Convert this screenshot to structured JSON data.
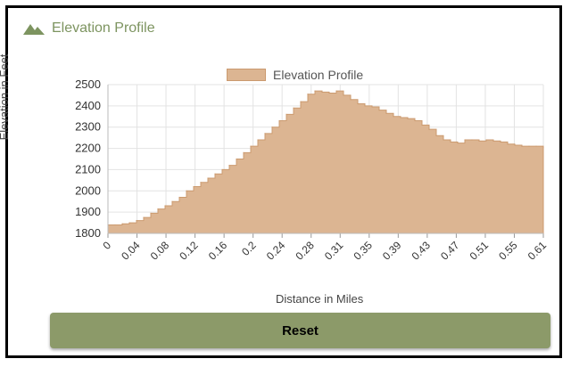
{
  "header": {
    "title": "Elevation Profile",
    "icon": "mountain-icon"
  },
  "chart_data": {
    "type": "area",
    "legend": [
      "Elevation Profile"
    ],
    "legend_placement": "top-center",
    "xlabel": "Distance in Miles",
    "ylabel": "Elevation in Feet",
    "ylim": [
      1800,
      2500
    ],
    "xlim": [
      0,
      0.61
    ],
    "y_ticks": [
      1800,
      1900,
      2000,
      2100,
      2200,
      2300,
      2400,
      2500
    ],
    "x_ticks": [
      "0",
      "0.04",
      "0.08",
      "0.12",
      "0.16",
      "0.2",
      "0.24",
      "0.28",
      "0.31",
      "0.35",
      "0.39",
      "0.43",
      "0.47",
      "0.51",
      "0.55",
      "0.61"
    ],
    "grid": true,
    "fill_color": "#dcb592",
    "line_color": "#cb9a6f",
    "series": [
      {
        "name": "Elevation Profile",
        "x": [
          0,
          0.01,
          0.02,
          0.03,
          0.04,
          0.05,
          0.06,
          0.07,
          0.08,
          0.09,
          0.1,
          0.11,
          0.12,
          0.13,
          0.14,
          0.15,
          0.16,
          0.17,
          0.18,
          0.19,
          0.2,
          0.21,
          0.22,
          0.23,
          0.24,
          0.25,
          0.26,
          0.27,
          0.28,
          0.29,
          0.3,
          0.31,
          0.32,
          0.33,
          0.34,
          0.35,
          0.36,
          0.37,
          0.38,
          0.39,
          0.4,
          0.41,
          0.42,
          0.43,
          0.44,
          0.45,
          0.46,
          0.47,
          0.48,
          0.49,
          0.5,
          0.51,
          0.52,
          0.53,
          0.54,
          0.55,
          0.56,
          0.57,
          0.58,
          0.59,
          0.6,
          0.61
        ],
        "y": [
          1840,
          1840,
          1845,
          1850,
          1860,
          1875,
          1895,
          1915,
          1930,
          1950,
          1970,
          2000,
          2020,
          2040,
          2060,
          2080,
          2100,
          2120,
          2150,
          2180,
          2210,
          2240,
          2270,
          2300,
          2330,
          2360,
          2390,
          2420,
          2455,
          2470,
          2465,
          2460,
          2470,
          2450,
          2430,
          2410,
          2400,
          2395,
          2380,
          2365,
          2350,
          2345,
          2340,
          2330,
          2310,
          2290,
          2260,
          2240,
          2230,
          2225,
          2240,
          2240,
          2235,
          2240,
          2235,
          2230,
          2220,
          2215,
          2210,
          2210,
          2210,
          2205
        ]
      }
    ]
  },
  "reset_button": {
    "label": "Reset"
  }
}
